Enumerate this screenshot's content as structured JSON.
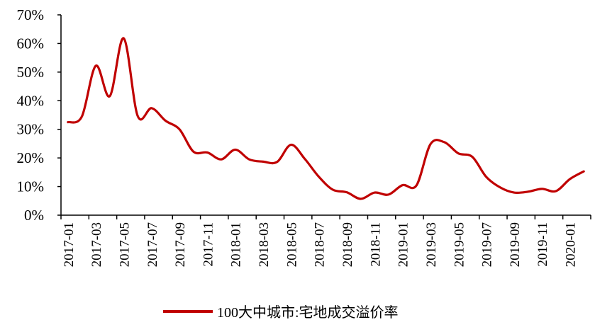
{
  "chart_data": {
    "type": "line",
    "title": "",
    "xlabel": "",
    "ylabel": "",
    "ylim": [
      0,
      70
    ],
    "yticks": [
      "0%",
      "10%",
      "20%",
      "30%",
      "40%",
      "50%",
      "60%",
      "70%"
    ],
    "grid": false,
    "legend_position": "bottom",
    "x": [
      "2017-01",
      "2017-02",
      "2017-03",
      "2017-04",
      "2017-05",
      "2017-06",
      "2017-07",
      "2017-08",
      "2017-09",
      "2017-10",
      "2017-11",
      "2017-12",
      "2018-01",
      "2018-02",
      "2018-03",
      "2018-04",
      "2018-05",
      "2018-06",
      "2018-07",
      "2018-08",
      "2018-09",
      "2018-10",
      "2018-11",
      "2018-12",
      "2019-01",
      "2019-02",
      "2019-03",
      "2019-04",
      "2019-05",
      "2019-06",
      "2019-07",
      "2019-08",
      "2019-09",
      "2019-10",
      "2019-11",
      "2019-12",
      "2020-01",
      "2020-02"
    ],
    "xtick_labels": [
      "2017-01",
      "2017-03",
      "2017-05",
      "2017-07",
      "2017-09",
      "2017-11",
      "2018-01",
      "2018-03",
      "2018-05",
      "2018-07",
      "2018-09",
      "2018-11",
      "2019-01",
      "2019-03",
      "2019-05",
      "2019-07",
      "2019-09",
      "2019-11",
      "2020-01"
    ],
    "series": [
      {
        "name": "100大中城市:宅地成交溢价率",
        "color": "#c00000",
        "values": [
          32.5,
          34.5,
          52.2,
          41.6,
          61.8,
          34.7,
          37.4,
          33.0,
          30.0,
          22.2,
          21.9,
          19.5,
          22.9,
          19.5,
          18.7,
          18.6,
          24.6,
          19.6,
          13.4,
          8.9,
          8.0,
          5.7,
          7.9,
          7.2,
          10.5,
          10.4,
          24.8,
          25.5,
          21.6,
          20.4,
          13.4,
          9.7,
          7.9,
          8.2,
          9.2,
          8.4,
          12.6,
          15.3
        ]
      }
    ]
  }
}
